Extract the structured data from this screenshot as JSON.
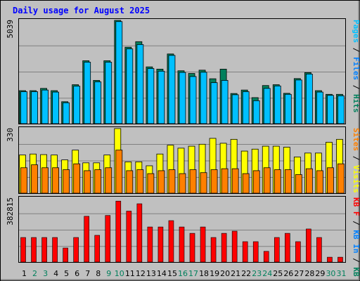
{
  "chart_data": {
    "type": "bar",
    "title": "Daily usage for August 2025",
    "categories": [
      "1",
      "2",
      "3",
      "4",
      "5",
      "6",
      "7",
      "8",
      "9",
      "10",
      "11",
      "12",
      "13",
      "14",
      "15",
      "16",
      "17",
      "18",
      "19",
      "20",
      "21",
      "22",
      "23",
      "24",
      "25",
      "26",
      "27",
      "28",
      "29",
      "30",
      "31"
    ],
    "weekend_days": [
      "2",
      "3",
      "9",
      "10",
      "16",
      "17",
      "23",
      "24",
      "30",
      "31"
    ],
    "panels": [
      {
        "name": "hits-files-pages",
        "ymax_label": "5039",
        "ylim": [
          0,
          5039
        ],
        "legend": [
          "Pages",
          "Files",
          "Hits"
        ],
        "legend_separator": " / ",
        "series": [
          {
            "name": "Hits",
            "color": "#00805c",
            "values": [
              1610,
              1610,
              1720,
              1610,
              1070,
              1900,
              3070,
              2110,
              3070,
              5039,
              3730,
              4000,
              2770,
              2660,
              3400,
              2580,
              2450,
              2610,
              2190,
              2660,
              1470,
              1640,
              1270,
              1860,
              1900,
              1480,
              2200,
              2490,
              1610,
              1430,
              1430
            ]
          },
          {
            "name": "Files",
            "color": "#00c0ff",
            "values": [
              1560,
              1560,
              1640,
              1540,
              1020,
              1830,
              3000,
              2040,
              3000,
              4980,
              3650,
              3860,
              2690,
              2560,
              3330,
              2500,
              2300,
              2510,
              2000,
              2110,
              1410,
              1560,
              1120,
              1720,
              1840,
              1430,
              2130,
              2420,
              1540,
              1380,
              1360
            ]
          },
          {
            "name": "Pages",
            "color": "#00c0ff",
            "values": [
              0,
              0,
              0,
              0,
              0,
              0,
              0,
              0,
              0,
              0,
              0,
              0,
              0,
              0,
              0,
              0,
              0,
              0,
              0,
              0,
              0,
              0,
              0,
              0,
              0,
              0,
              0,
              0,
              0,
              0,
              0
            ]
          }
        ]
      },
      {
        "name": "visits-sites",
        "ymax_label": "330",
        "ylim": [
          0,
          330
        ],
        "legend": [
          "Visits",
          "Sites"
        ],
        "legend_separator": " / ",
        "series": [
          {
            "name": "Visits",
            "color": "#ffff00",
            "values": [
              195,
              200,
              197,
              195,
              170,
              220,
              155,
              155,
              195,
              330,
              160,
              160,
              140,
              200,
              245,
              230,
              240,
              250,
              280,
              255,
              275,
              215,
              225,
              240,
              240,
              235,
              185,
              205,
              205,
              260,
              275
            ]
          },
          {
            "name": "Sites",
            "color": "#ff8000",
            "values": [
              130,
              145,
              130,
              130,
              120,
              150,
              115,
              120,
              130,
              220,
              115,
              120,
              100,
              115,
              120,
              100,
              120,
              105,
              120,
              125,
              125,
              100,
              115,
              130,
              120,
              120,
              95,
              125,
              115,
              130,
              150
            ]
          }
        ]
      },
      {
        "name": "kbytes",
        "ymax_label": "382815",
        "ylim": [
          0,
          382815
        ],
        "legend": [
          "KB F",
          "KB In",
          "KB Out"
        ],
        "legend_separator": " / ",
        "series": [
          {
            "name": "KB F",
            "color": "#ff0000",
            "values": [
              147000,
              147000,
              147000,
              147000,
              84000,
              147000,
              274000,
              160000,
              279000,
              365000,
              305000,
              349000,
              210000,
              210000,
              248000,
              210000,
              172000,
              210000,
              147000,
              172000,
              185000,
              122000,
              122000,
              64000,
              147000,
              172000,
              122000,
              198000,
              147000,
              29000,
              29000
            ]
          }
        ]
      }
    ],
    "colors": {
      "background": "#c0c0c0",
      "plot_background": "#c0c0c0",
      "grid": "#808080",
      "title": "#0000ff",
      "axis_label": "#000000",
      "weekday_label": "#000000",
      "weekend_label": "#00805c",
      "legend_pages": "#00c0ff",
      "legend_files": "#0080ff",
      "legend_hits": "#00805c",
      "legend_visits": "#ffff00",
      "legend_sites": "#ff8000",
      "legend_kbf": "#ff0000",
      "legend_kbin": "#0080ff",
      "legend_kbout": "#00805c",
      "legend_separator": "#000000"
    }
  }
}
